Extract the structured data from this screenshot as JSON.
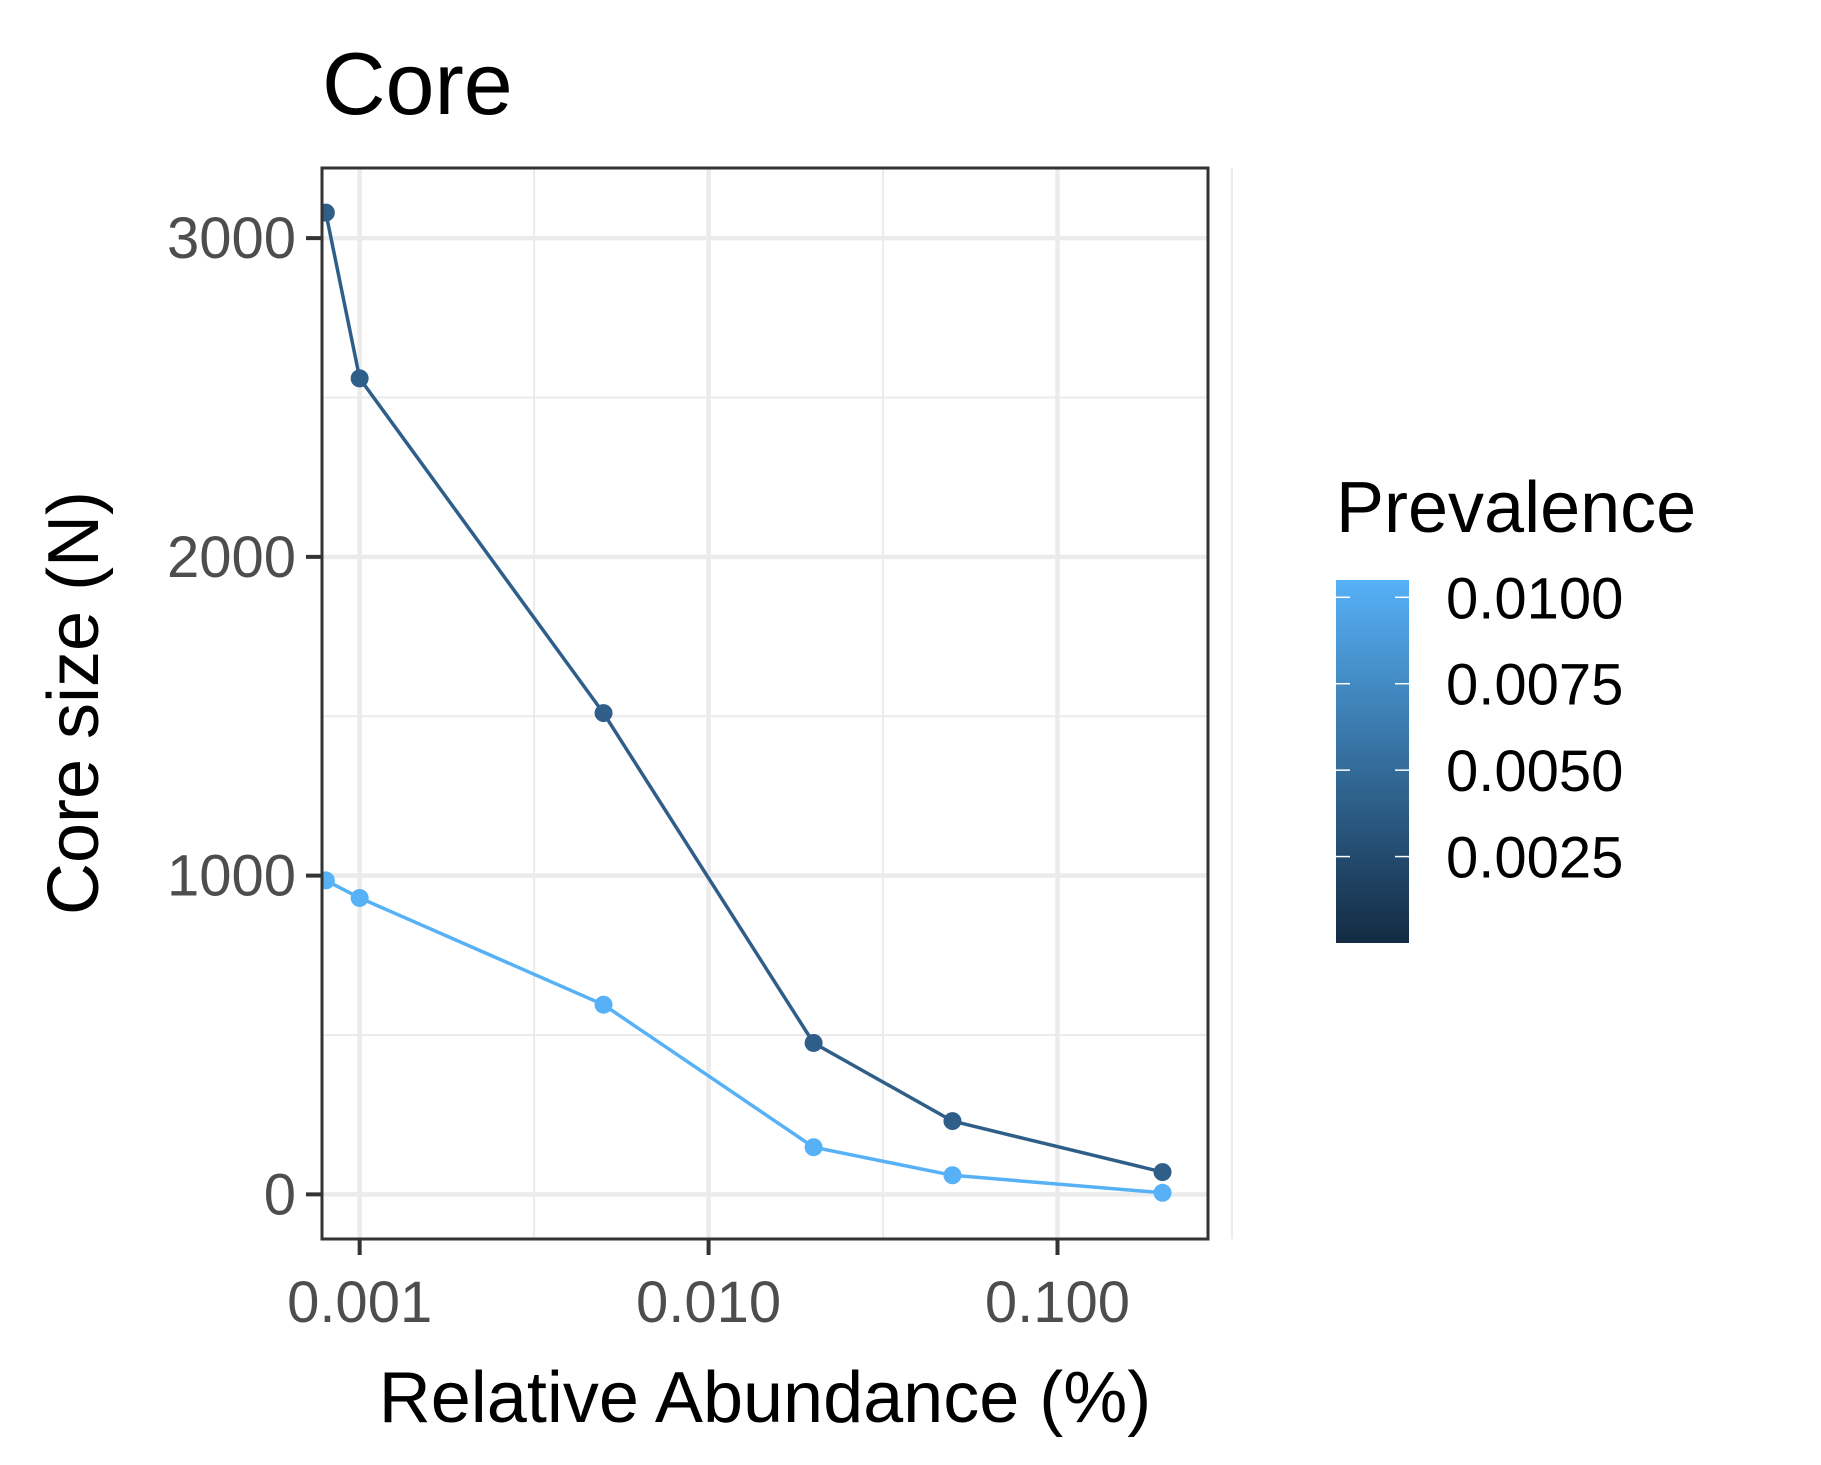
{
  "chart_data": {
    "type": "line",
    "title": "Core",
    "xlabel": "Relative Abundance (%)",
    "ylabel": "Core size (N)",
    "x_scale": "log10",
    "xlim": [
      0.00078,
      0.27
    ],
    "ylim": [
      -140,
      3220
    ],
    "x_ticks": [
      0.001,
      0.01,
      0.1
    ],
    "x_tick_labels": [
      "0.001",
      "0.010",
      "0.100"
    ],
    "y_ticks": [
      0,
      1000,
      2000,
      3000
    ],
    "y_tick_labels": [
      "0",
      "1000",
      "2000",
      "3000"
    ],
    "grid": true,
    "series": [
      {
        "prevalence": 0.001,
        "color": "#2f5f89",
        "x": [
          0.0008,
          0.001,
          0.005,
          0.02,
          0.05,
          0.2
        ],
        "y": [
          3080,
          2560,
          1510,
          475,
          230,
          70
        ]
      },
      {
        "prevalence": 0.01,
        "color": "#56b1f7",
        "x": [
          0.0008,
          0.001,
          0.005,
          0.02,
          0.05,
          0.2
        ],
        "y": [
          985,
          930,
          595,
          148,
          60,
          5
        ]
      }
    ],
    "legend": {
      "title": "Prevalence",
      "placement": "right",
      "type": "colorbar",
      "range": [
        0,
        0.0105
      ],
      "low_color": "#132b43",
      "high_color": "#56b1f7",
      "breaks": [
        0.01,
        0.0075,
        0.005,
        0.0025
      ],
      "labels": [
        "0.0100",
        "0.0075",
        "0.0050",
        "0.0025"
      ]
    }
  }
}
